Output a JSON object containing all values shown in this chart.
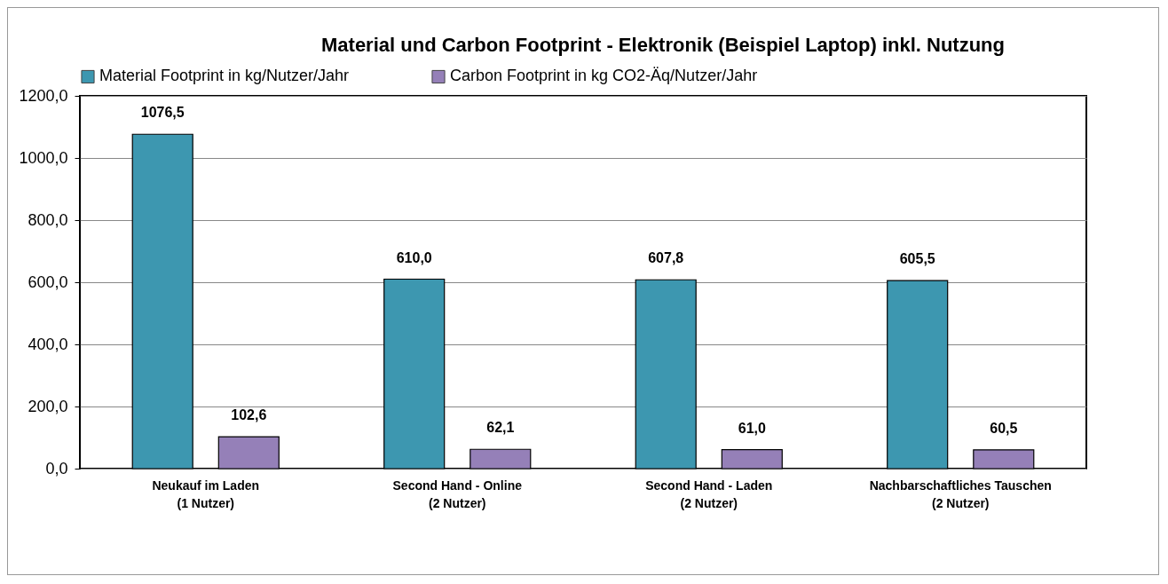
{
  "chart_data": {
    "type": "bar",
    "title": "Material  und Carbon Footprint - Elektronik (Beispiel Laptop) inkl. Nutzung",
    "categories": [
      "Neukauf im Laden\n(1 Nutzer)",
      "Second Hand - Online\n(2 Nutzer)",
      "Second Hand - Laden\n(2 Nutzer)",
      "Nachbarschaftliches Tauschen\n(2 Nutzer)"
    ],
    "series": [
      {
        "name": "Material Footprint in kg/Nutzer/Jahr",
        "color": "#3d97b0",
        "values": [
          1076.5,
          610.0,
          607.8,
          605.5
        ],
        "value_labels": [
          "1076,5",
          "610,0",
          "607,8",
          "605,5"
        ]
      },
      {
        "name": "Carbon Footprint in kg CO2-Äq/Nutzer/Jahr",
        "color": "#9580b8",
        "values": [
          102.6,
          62.1,
          61.0,
          60.5
        ],
        "value_labels": [
          "102,6",
          "62,1",
          "61,0",
          "60,5"
        ]
      }
    ],
    "ylim": [
      0,
      1200
    ],
    "yticks": [
      {
        "value": 0,
        "label": "0,0"
      },
      {
        "value": 200,
        "label": "200,0"
      },
      {
        "value": 400,
        "label": "400,0"
      },
      {
        "value": 600,
        "label": "600,0"
      },
      {
        "value": 800,
        "label": "800,0"
      },
      {
        "value": 1000,
        "label": "1000,0"
      },
      {
        "value": 1200,
        "label": "1200,0"
      }
    ],
    "grid": "y",
    "legend": "top"
  }
}
